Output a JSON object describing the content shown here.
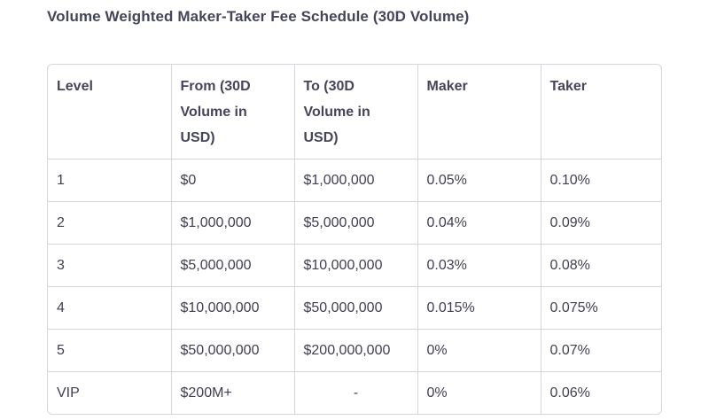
{
  "title": "Volume Weighted Maker-Taker Fee Schedule (30D Volume)",
  "table": {
    "headers": [
      "Level",
      "From (30D Volume in USD)",
      "To (30D Volume in USD)",
      "Maker",
      "Taker"
    ],
    "rows": [
      [
        "1",
        "$0",
        "$1,000,000",
        "0.05%",
        "0.10%"
      ],
      [
        "2",
        "$1,000,000",
        "$5,000,000",
        "0.04%",
        "0.09%"
      ],
      [
        "3",
        "$5,000,000",
        "$10,000,000",
        "0.03%",
        "0.08%"
      ],
      [
        "4",
        "$10,000,000",
        "$50,000,000",
        "0.015%",
        "0.075%"
      ],
      [
        "5",
        "$50,000,000",
        "$200,000,000",
        "0%",
        "0.07%"
      ],
      [
        "VIP",
        "$200M+",
        "-",
        "0%",
        "0.06%"
      ]
    ]
  }
}
